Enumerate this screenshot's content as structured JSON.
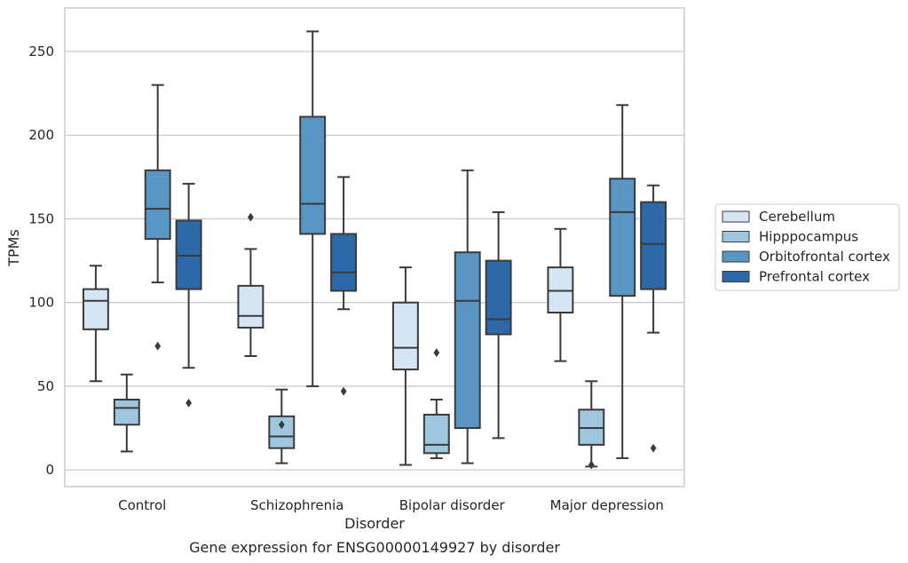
{
  "chart_data": {
    "type": "box",
    "title": "",
    "caption": "Gene expression for ENSG00000149927 by disorder",
    "xlabel": "Disorder",
    "ylabel": "TPMs",
    "ylim": [
      -10,
      276
    ],
    "yticks": [
      0,
      50,
      100,
      150,
      200,
      250
    ],
    "grid": "horizontal",
    "legend_position": "right",
    "categories": [
      "Control",
      "Schizophrenia",
      "Bipolar disorder",
      "Major depression"
    ],
    "series": [
      {
        "name": "Cerebellum",
        "color": "#d6e5f3",
        "boxes": [
          {
            "min": 53,
            "q1": 84,
            "median": 101,
            "q3": 108,
            "max": 122,
            "outliers": []
          },
          {
            "min": 68,
            "q1": 85,
            "median": 92,
            "q3": 110,
            "max": 132,
            "outliers": [
              151
            ]
          },
          {
            "min": 3,
            "q1": 60,
            "median": 73,
            "q3": 100,
            "max": 121,
            "outliers": []
          },
          {
            "min": 65,
            "q1": 94,
            "median": 107,
            "q3": 121,
            "max": 144,
            "outliers": []
          }
        ]
      },
      {
        "name": "Hipppocampus",
        "color": "#9fc6df",
        "boxes": [
          {
            "min": 11,
            "q1": 27,
            "median": 37,
            "q3": 42,
            "max": 57,
            "outliers": []
          },
          {
            "min": 4,
            "q1": 13,
            "median": 20,
            "q3": 32,
            "max": 48,
            "outliers": [
              27
            ]
          },
          {
            "min": 7,
            "q1": 10,
            "median": 15,
            "q3": 33,
            "max": 42,
            "outliers": [
              70
            ]
          },
          {
            "min": 2,
            "q1": 15,
            "median": 25,
            "q3": 36,
            "max": 53,
            "outliers": [
              3
            ]
          }
        ]
      },
      {
        "name": "Orbitofrontal cortex",
        "color": "#5996c4",
        "boxes": [
          {
            "min": 112,
            "q1": 138,
            "median": 156,
            "q3": 179,
            "max": 230,
            "outliers": [
              74
            ]
          },
          {
            "min": 50,
            "q1": 141,
            "median": 159,
            "q3": 211,
            "max": 262,
            "outliers": []
          },
          {
            "min": 4,
            "q1": 25,
            "median": 101,
            "q3": 130,
            "max": 179,
            "outliers": []
          },
          {
            "min": 7,
            "q1": 104,
            "median": 154,
            "q3": 174,
            "max": 218,
            "outliers": []
          }
        ]
      },
      {
        "name": "Prefrontal cortex",
        "color": "#2d69a9",
        "boxes": [
          {
            "min": 61,
            "q1": 108,
            "median": 128,
            "q3": 149,
            "max": 171,
            "outliers": [
              40
            ]
          },
          {
            "min": 96,
            "q1": 107,
            "median": 118,
            "q3": 141,
            "max": 175,
            "outliers": [
              47
            ]
          },
          {
            "min": 19,
            "q1": 81,
            "median": 90,
            "q3": 125,
            "max": 154,
            "outliers": []
          },
          {
            "min": 82,
            "q1": 108,
            "median": 135,
            "q3": 160,
            "max": 170,
            "outliers": [
              13
            ]
          }
        ]
      }
    ]
  }
}
